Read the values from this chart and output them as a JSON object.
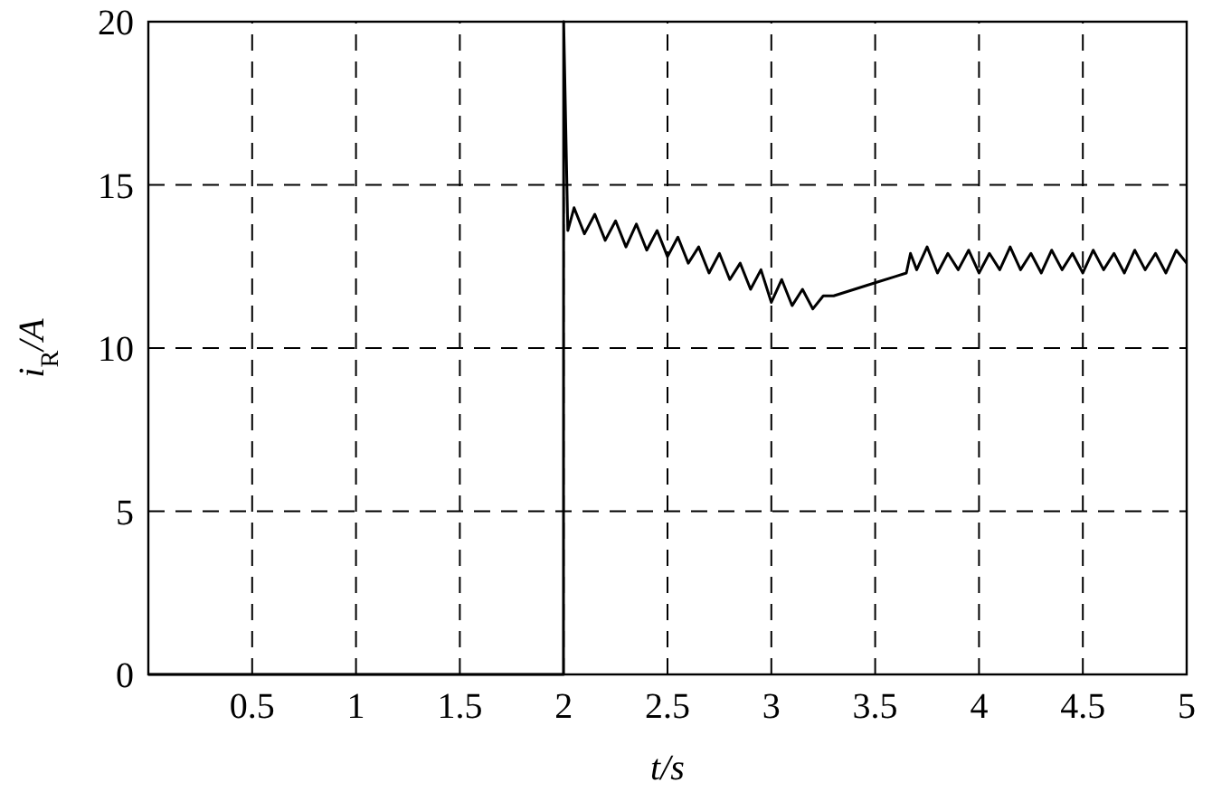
{
  "chart_data": {
    "type": "line",
    "xlabel": "t/s",
    "ylabel": "i$_{R}$/A",
    "xlim": [
      0,
      5
    ],
    "ylim": [
      0,
      20
    ],
    "xticks": [
      0.5,
      1,
      1.5,
      2,
      2.5,
      3,
      3.5,
      4,
      4.5,
      5
    ],
    "yticks": [
      0,
      5,
      10,
      15,
      20
    ],
    "grid": true,
    "line_style": "solid",
    "marker": "none",
    "series": [
      {
        "color": "#000000",
        "x": [
          0,
          1.999,
          2.0,
          2.02,
          2.05,
          2.1,
          2.15,
          2.2,
          2.25,
          2.3,
          2.35,
          2.4,
          2.45,
          2.5,
          2.55,
          2.6,
          2.65,
          2.7,
          2.75,
          2.8,
          2.85,
          2.9,
          2.95,
          3.0,
          3.05,
          3.1,
          3.15,
          3.2,
          3.25,
          3.3,
          3.4,
          3.5,
          3.6,
          3.65,
          3.67,
          3.7,
          3.75,
          3.8,
          3.85,
          3.9,
          3.95,
          4.0,
          4.05,
          4.1,
          4.15,
          4.2,
          4.25,
          4.3,
          4.35,
          4.4,
          4.45,
          4.5,
          4.55,
          4.6,
          4.65,
          4.7,
          4.75,
          4.8,
          4.85,
          4.9,
          4.95,
          5.0
        ],
        "values": [
          0,
          0,
          20,
          13.6,
          14.3,
          13.5,
          14.1,
          13.3,
          13.9,
          13.1,
          13.8,
          13.0,
          13.6,
          12.8,
          13.4,
          12.6,
          13.1,
          12.3,
          12.9,
          12.1,
          12.6,
          11.8,
          12.4,
          11.4,
          12.1,
          11.3,
          11.8,
          11.2,
          11.6,
          11.6,
          11.8,
          12.0,
          12.2,
          12.3,
          12.9,
          12.4,
          13.1,
          12.3,
          12.9,
          12.4,
          13.0,
          12.3,
          12.9,
          12.4,
          13.1,
          12.4,
          12.9,
          12.3,
          13.0,
          12.4,
          12.9,
          12.3,
          13.0,
          12.4,
          12.9,
          12.3,
          13.0,
          12.4,
          12.9,
          12.3,
          13.0,
          12.6
        ]
      }
    ]
  }
}
